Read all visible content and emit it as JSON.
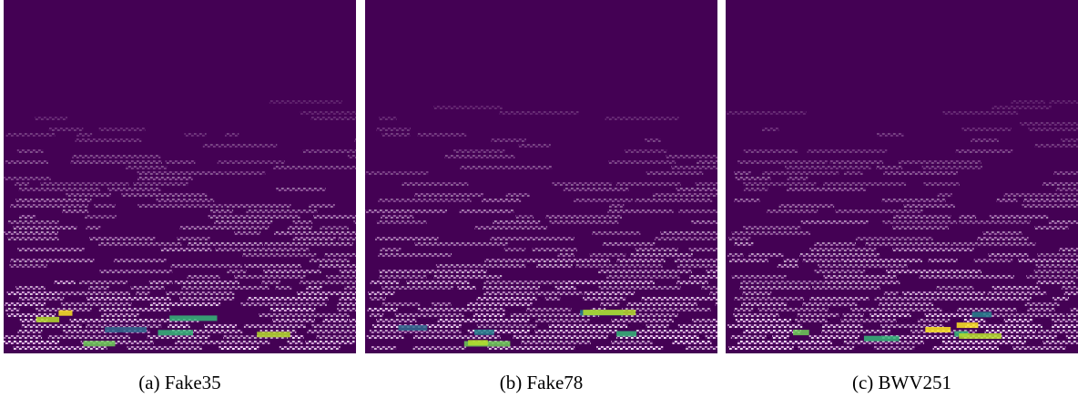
{
  "figure": {
    "panels": [
      {
        "caption": "(a) Fake35"
      },
      {
        "caption": "(b) Fake78"
      },
      {
        "caption": "(c) BWV251"
      }
    ]
  }
}
